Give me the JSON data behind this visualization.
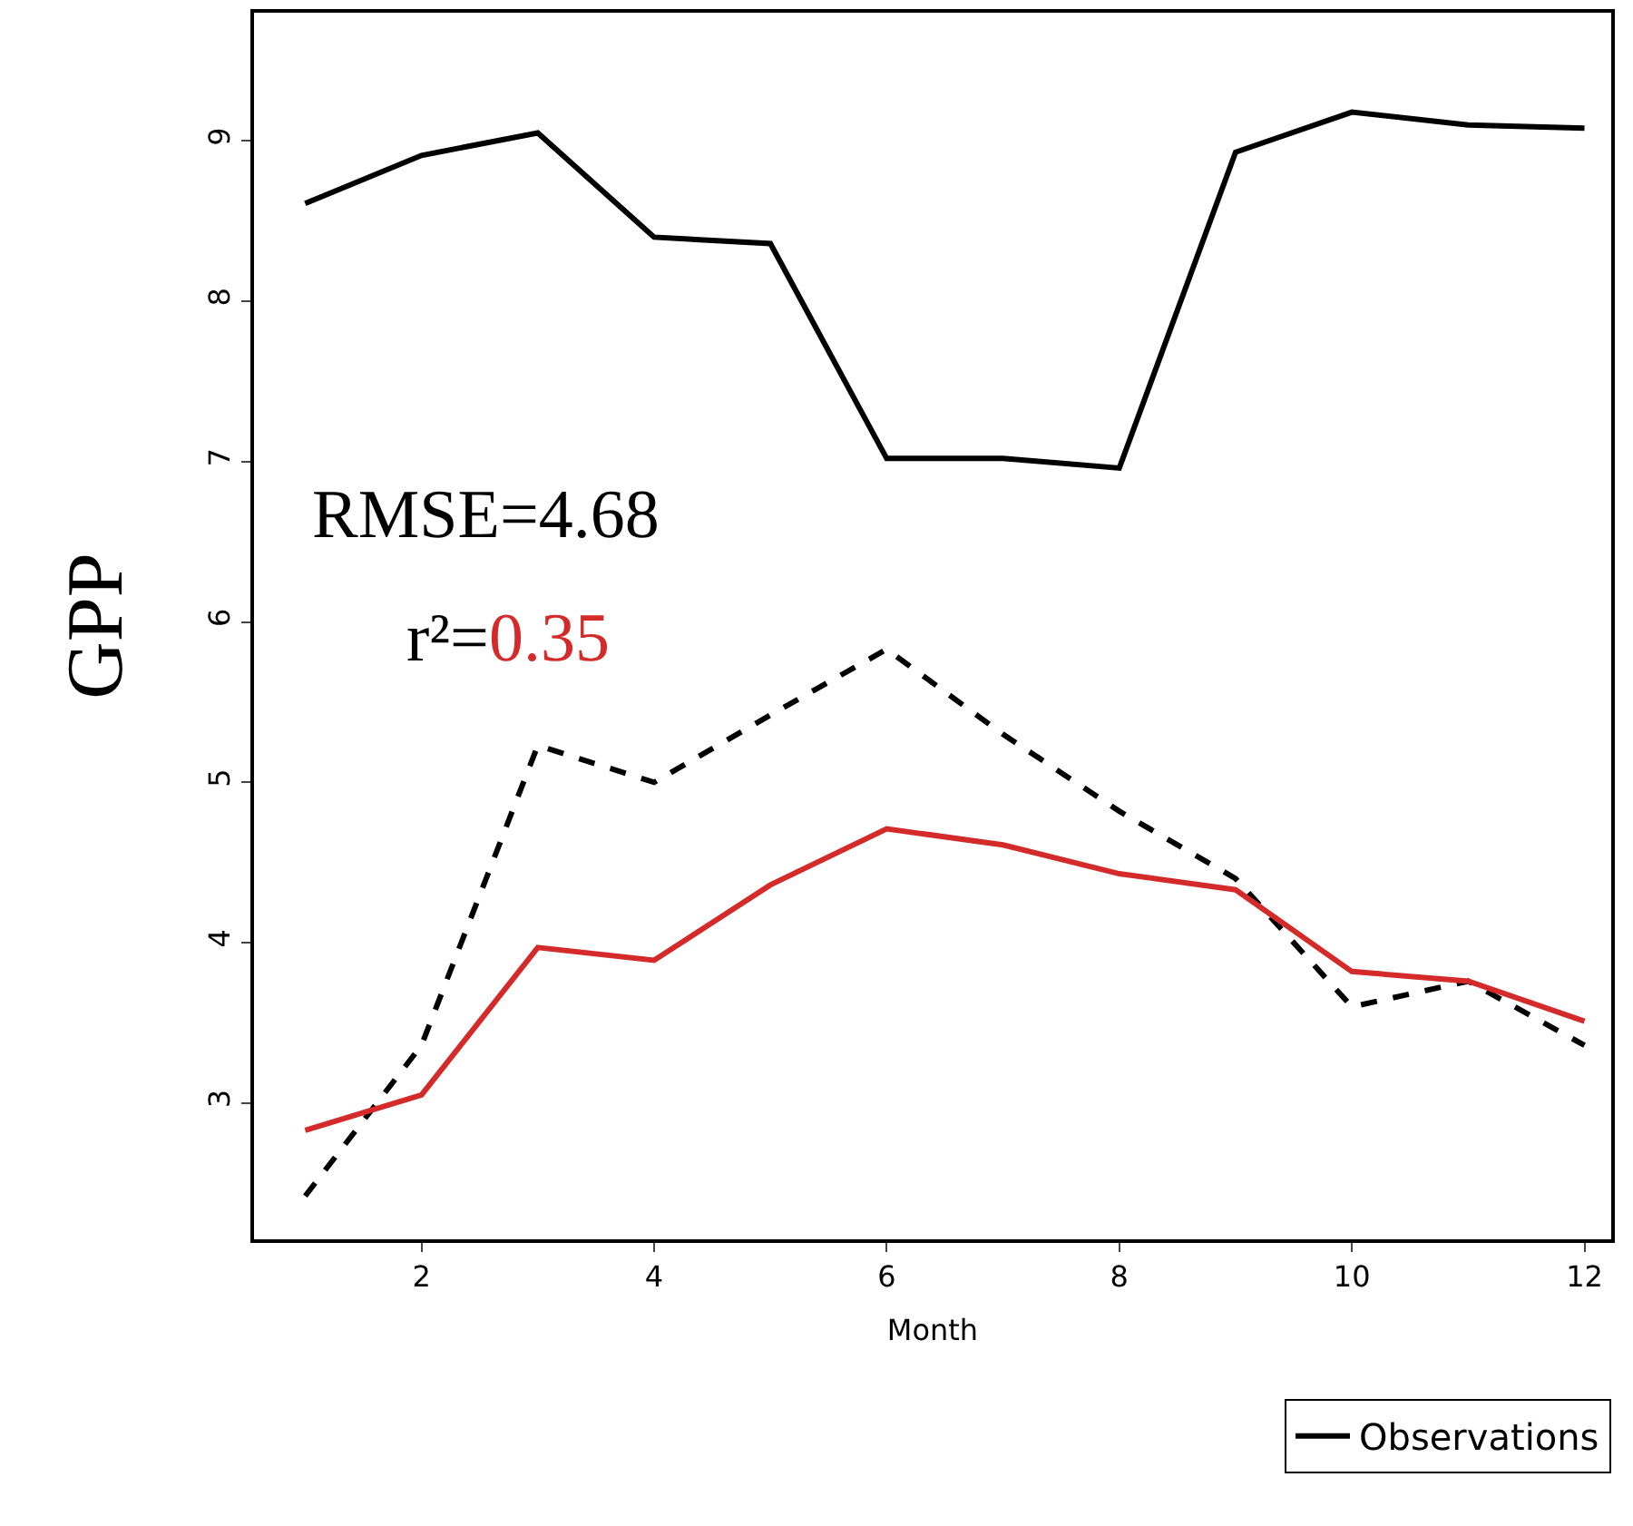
{
  "chart_data": {
    "type": "line",
    "xlabel": "Month",
    "ylabel": "GPP",
    "x": [
      1,
      2,
      3,
      4,
      5,
      6,
      7,
      8,
      9,
      10,
      11,
      12
    ],
    "series": [
      {
        "name": "Observations",
        "color": "#000000",
        "line_style": "solid",
        "values": [
          8.61,
          8.91,
          9.05,
          8.4,
          8.36,
          7.02,
          7.02,
          6.96,
          8.93,
          9.18,
          9.1,
          9.08
        ]
      },
      {
        "color": "#000000",
        "line_style": "dashed",
        "values": [
          2.42,
          3.36,
          5.23,
          5.0,
          5.42,
          5.83,
          5.3,
          4.82,
          4.4,
          3.6,
          3.76,
          3.36
        ]
      },
      {
        "color": "#d42a2a",
        "line_style": "solid",
        "values": [
          2.83,
          3.05,
          3.97,
          3.89,
          4.36,
          4.71,
          4.61,
          4.43,
          4.33,
          3.82,
          3.76,
          3.51
        ]
      }
    ],
    "xlim": [
      0.56,
      12.23
    ],
    "ylim": [
      2.15,
      9.8
    ],
    "xticks": [
      2,
      4,
      6,
      8,
      10,
      12
    ],
    "yticks": [
      3,
      4,
      5,
      6,
      7,
      8,
      9
    ],
    "legend": "bottom right",
    "marker": "none",
    "annotations": [
      "RMSE=4.68",
      "r²=0.35"
    ]
  }
}
